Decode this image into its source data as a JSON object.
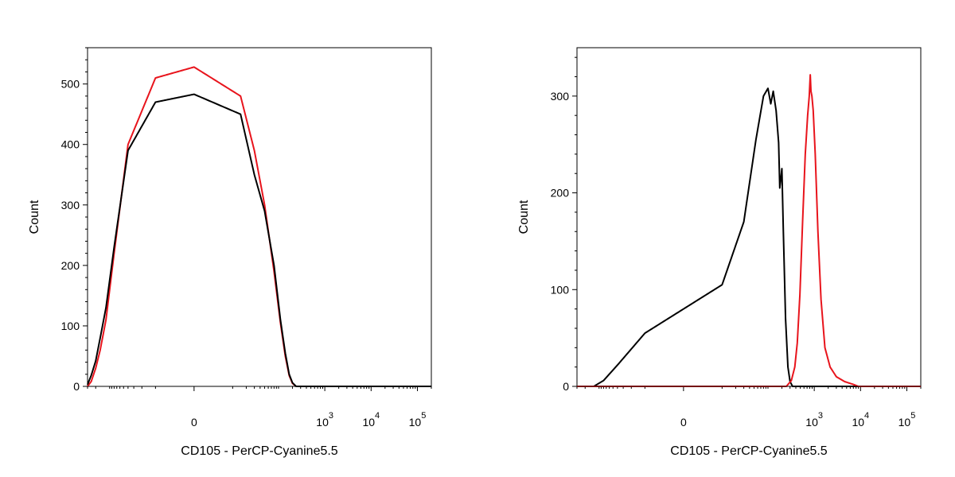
{
  "colors": {
    "control": "#000000",
    "stained": "#e8141c",
    "frame": "#000000"
  },
  "chart_data": [
    {
      "type": "line",
      "subtype": "flow-cytometry-histogram",
      "title": "",
      "xlabel": "CD105 - PerCP-Cyanine5.5",
      "ylabel": "Count",
      "x_scale": "biexponential",
      "xlim": [
        -300,
        200000
      ],
      "ylim": [
        0,
        560
      ],
      "yticks": [
        0,
        100,
        200,
        300,
        400,
        500
      ],
      "ytick_labels": [
        "0",
        "100",
        "200",
        "300",
        "400",
        "500"
      ],
      "xticks": [
        0,
        1000,
        10000,
        100000
      ],
      "xtick_labels": [
        {
          "base": "0",
          "exp": ""
        },
        {
          "base": "10",
          "exp": "3"
        },
        {
          "base": "10",
          "exp": "4"
        },
        {
          "base": "10",
          "exp": "5"
        }
      ],
      "legend": "none",
      "grid": false,
      "series": [
        {
          "color": "#e8141c",
          "points": [
            [
              -300,
              0
            ],
            [
              -250,
              8
            ],
            [
              -200,
              30
            ],
            [
              -160,
              60
            ],
            [
              -120,
              110
            ],
            [
              -80,
              220
            ],
            [
              -40,
              400
            ],
            [
              -10,
              510
            ],
            [
              0,
              528
            ],
            [
              15,
              480
            ],
            [
              30,
              390
            ],
            [
              50,
              300
            ],
            [
              80,
              190
            ],
            [
              110,
              105
            ],
            [
              140,
              50
            ],
            [
              170,
              18
            ],
            [
              200,
              5
            ],
            [
              240,
              0
            ],
            [
              200000,
              0
            ]
          ]
        },
        {
          "color": "#000000",
          "points": [
            [
              -300,
              3
            ],
            [
              -250,
              18
            ],
            [
              -200,
              42
            ],
            [
              -160,
              80
            ],
            [
              -120,
              130
            ],
            [
              -80,
              230
            ],
            [
              -40,
              390
            ],
            [
              -10,
              470
            ],
            [
              0,
              483
            ],
            [
              15,
              450
            ],
            [
              30,
              350
            ],
            [
              50,
              290
            ],
            [
              80,
              200
            ],
            [
              110,
              110
            ],
            [
              140,
              55
            ],
            [
              170,
              20
            ],
            [
              200,
              6
            ],
            [
              240,
              0
            ],
            [
              200000,
              0
            ]
          ]
        }
      ]
    },
    {
      "type": "line",
      "subtype": "flow-cytometry-histogram",
      "title": "",
      "xlabel": "CD105 - PerCP-Cyanine5.5",
      "ylabel": "Count",
      "x_scale": "biexponential",
      "xlim": [
        -300,
        200000
      ],
      "ylim": [
        0,
        350
      ],
      "yticks": [
        0,
        100,
        200,
        300
      ],
      "ytick_labels": [
        "0",
        "100",
        "200",
        "300"
      ],
      "xticks": [
        0,
        1000,
        10000,
        100000
      ],
      "xtick_labels": [
        {
          "base": "0",
          "exp": ""
        },
        {
          "base": "10",
          "exp": "3"
        },
        {
          "base": "10",
          "exp": "4"
        },
        {
          "base": "10",
          "exp": "5"
        }
      ],
      "legend": "none",
      "grid": false,
      "series": [
        {
          "color": "#000000",
          "points": [
            [
              -130,
              0
            ],
            [
              -80,
              6
            ],
            [
              -40,
              22
            ],
            [
              -10,
              55
            ],
            [
              10,
              105
            ],
            [
              30,
              170
            ],
            [
              55,
              255
            ],
            [
              80,
              300
            ],
            [
              100,
              308
            ],
            [
              115,
              292
            ],
            [
              130,
              305
            ],
            [
              150,
              285
            ],
            [
              170,
              252
            ],
            [
              180,
              205
            ],
            [
              190,
              215
            ],
            [
              200,
              225
            ],
            [
              215,
              160
            ],
            [
              240,
              70
            ],
            [
              270,
              20
            ],
            [
              300,
              5
            ],
            [
              340,
              0
            ],
            [
              200000,
              0
            ]
          ]
        },
        {
          "color": "#e8141c",
          "points": [
            [
              -300,
              0
            ],
            [
              250,
              0
            ],
            [
              320,
              6
            ],
            [
              380,
              20
            ],
            [
              430,
              45
            ],
            [
              490,
              95
            ],
            [
              560,
              170
            ],
            [
              640,
              240
            ],
            [
              720,
              280
            ],
            [
              780,
              300
            ],
            [
              820,
              322
            ],
            [
              850,
              305
            ],
            [
              890,
              300
            ],
            [
              950,
              285
            ],
            [
              1050,
              240
            ],
            [
              1200,
              160
            ],
            [
              1400,
              90
            ],
            [
              1700,
              40
            ],
            [
              2200,
              20
            ],
            [
              3000,
              10
            ],
            [
              4500,
              5
            ],
            [
              7000,
              2
            ],
            [
              9000,
              0
            ],
            [
              200000,
              0
            ]
          ]
        }
      ]
    }
  ]
}
